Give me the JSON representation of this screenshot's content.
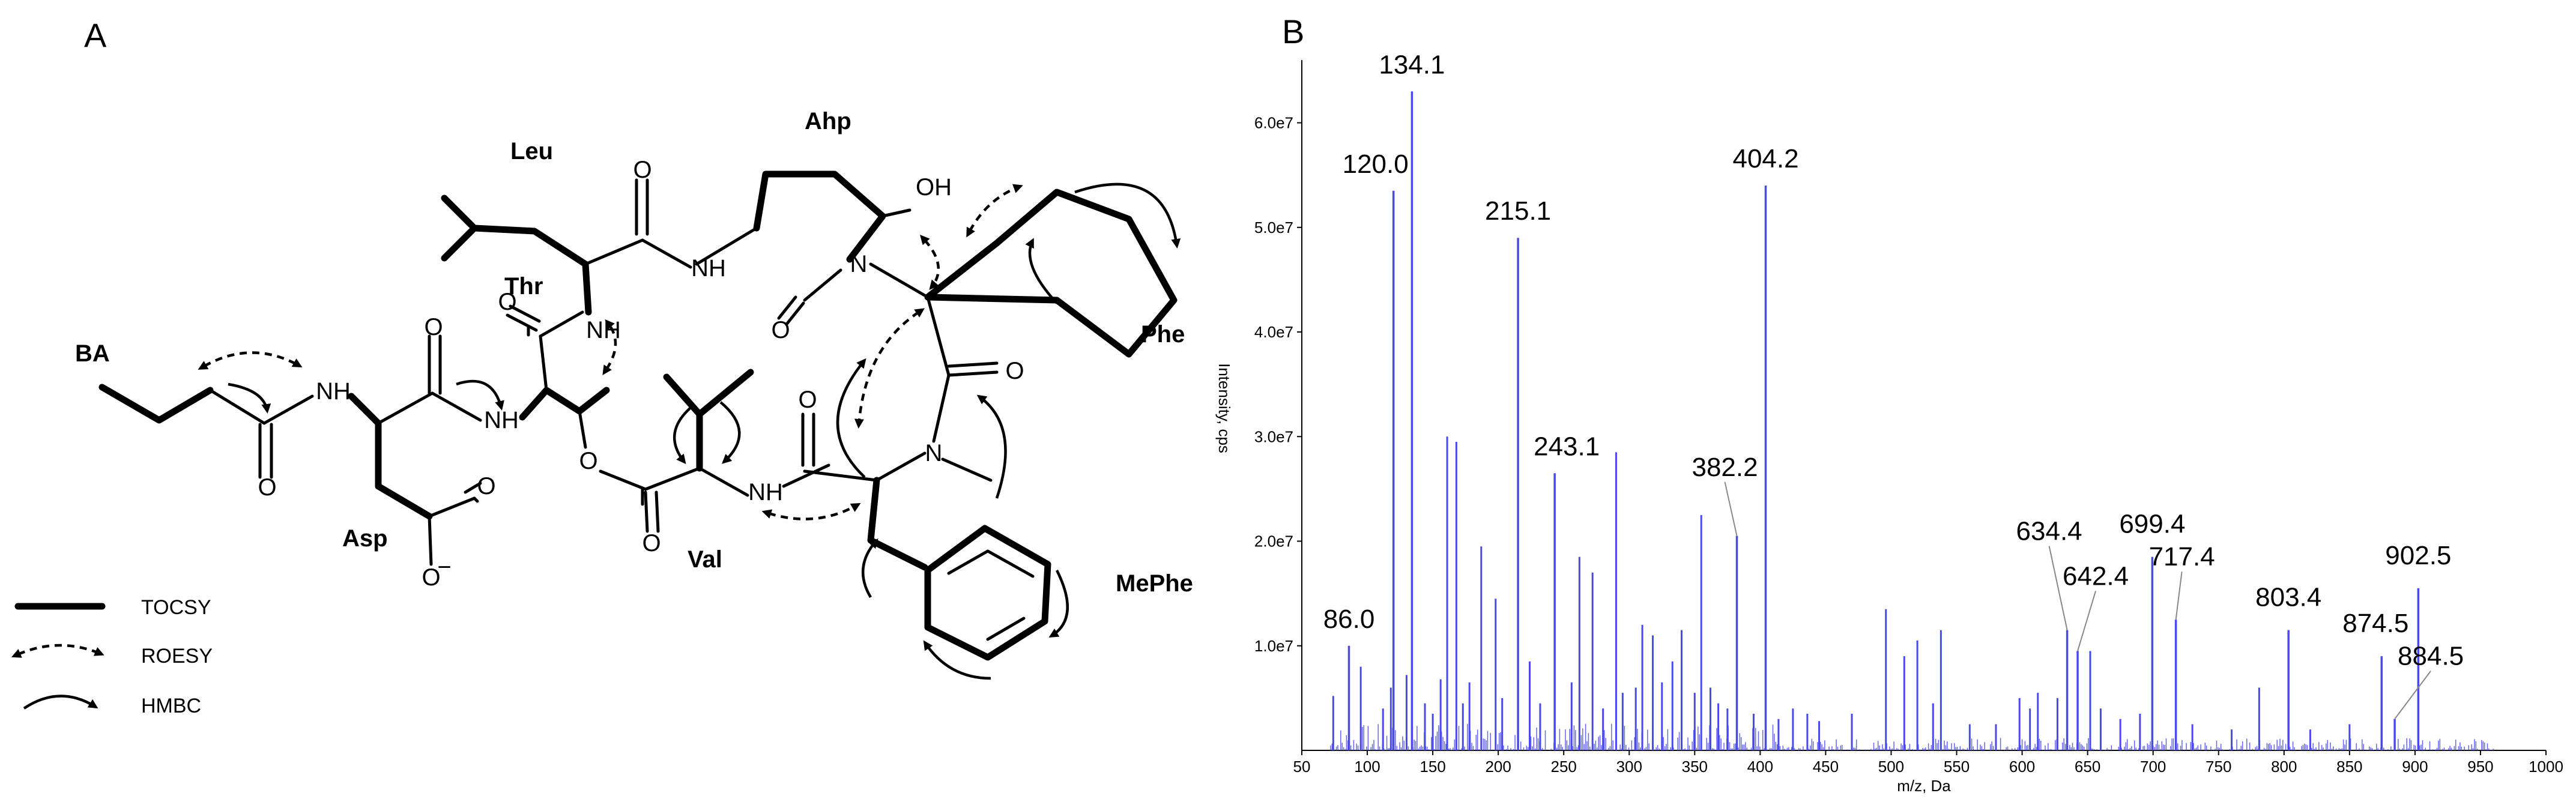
{
  "panel_a": {
    "label": "A",
    "residues": {
      "ba": "BA",
      "asp": "Asp",
      "thr": "Thr",
      "leu": "Leu",
      "ahp": "Ahp",
      "phe": "Phe",
      "val": "Val",
      "mephe": "MePhe"
    },
    "atoms": {
      "nh": "NH",
      "n": "N",
      "o": "O",
      "oh": "OH",
      "o_minus": "O",
      "minus": "−"
    },
    "legend": [
      {
        "label": "TOCSY",
        "style": "solid-bold"
      },
      {
        "label": "ROESY",
        "style": "dashed-arrow"
      },
      {
        "label": "HMBC",
        "style": "curved-arrow"
      }
    ]
  },
  "panel_b": {
    "label": "B",
    "xlabel": "m/z, Da",
    "ylabel": "Intensity, cps",
    "line_color": "#4a4ae8",
    "peak_labels": [
      "134.1",
      "120.0",
      "215.1",
      "404.2",
      "243.1",
      "382.2",
      "86.0",
      "634.4",
      "642.4",
      "699.4",
      "717.4",
      "803.4",
      "874.5",
      "884.5",
      "902.5"
    ],
    "xtick_labels": [
      "50",
      "100",
      "150",
      "200",
      "250",
      "300",
      "350",
      "400",
      "450",
      "500",
      "550",
      "600",
      "650",
      "700",
      "750",
      "800",
      "850",
      "900",
      "950",
      "1000"
    ],
    "ytick_labels": [
      "1.0e7",
      "2.0e7",
      "3.0e7",
      "4.0e7",
      "5.0e7",
      "6.0e7"
    ]
  },
  "chart_data": {
    "type": "bar",
    "title": "",
    "xlabel": "m/z, Da",
    "ylabel": "Intensity, cps",
    "xlim": [
      50,
      1000
    ],
    "ylim": [
      0,
      66000000
    ],
    "grid": false,
    "legend": "none",
    "xticks": [
      50,
      100,
      150,
      200,
      250,
      300,
      350,
      400,
      450,
      500,
      550,
      600,
      650,
      700,
      750,
      800,
      850,
      900,
      950,
      1000
    ],
    "yticks": [
      10000000,
      20000000,
      30000000,
      40000000,
      50000000,
      60000000
    ],
    "labeled_peaks": [
      {
        "x": 86.0,
        "y": 10000000,
        "label": "86.0"
      },
      {
        "x": 120.0,
        "y": 53500000,
        "label": "120.0"
      },
      {
        "x": 134.1,
        "y": 63000000,
        "label": "134.1"
      },
      {
        "x": 215.1,
        "y": 49000000,
        "label": "215.1"
      },
      {
        "x": 243.1,
        "y": 26500000,
        "label": "243.1"
      },
      {
        "x": 382.2,
        "y": 20500000,
        "label": "382.2"
      },
      {
        "x": 404.2,
        "y": 54000000,
        "label": "404.2"
      },
      {
        "x": 634.4,
        "y": 11500000,
        "label": "634.4"
      },
      {
        "x": 642.4,
        "y": 9500000,
        "label": "642.4"
      },
      {
        "x": 699.4,
        "y": 18500000,
        "label": "699.4"
      },
      {
        "x": 717.4,
        "y": 12500000,
        "label": "717.4"
      },
      {
        "x": 803.4,
        "y": 11500000,
        "label": "803.4"
      },
      {
        "x": 874.5,
        "y": 9000000,
        "label": "874.5"
      },
      {
        "x": 884.5,
        "y": 3000000,
        "label": "884.5"
      },
      {
        "x": 902.5,
        "y": 15500000,
        "label": "902.5"
      }
    ],
    "other_peaks": [
      {
        "x": 74,
        "y": 5200000
      },
      {
        "x": 95,
        "y": 8000000
      },
      {
        "x": 112,
        "y": 4000000
      },
      {
        "x": 118,
        "y": 6000000
      },
      {
        "x": 130,
        "y": 7200000
      },
      {
        "x": 144,
        "y": 4500000
      },
      {
        "x": 150,
        "y": 3500000
      },
      {
        "x": 156,
        "y": 6800000
      },
      {
        "x": 161,
        "y": 30000000
      },
      {
        "x": 168,
        "y": 29500000
      },
      {
        "x": 173,
        "y": 4500000
      },
      {
        "x": 178,
        "y": 6500000
      },
      {
        "x": 187,
        "y": 19500000
      },
      {
        "x": 198,
        "y": 14500000
      },
      {
        "x": 203,
        "y": 5000000
      },
      {
        "x": 224,
        "y": 8500000
      },
      {
        "x": 232,
        "y": 4500000
      },
      {
        "x": 256,
        "y": 6500000
      },
      {
        "x": 262,
        "y": 18500000
      },
      {
        "x": 272,
        "y": 17000000
      },
      {
        "x": 280,
        "y": 4000000
      },
      {
        "x": 290,
        "y": 28500000
      },
      {
        "x": 295,
        "y": 5500000
      },
      {
        "x": 305,
        "y": 6000000
      },
      {
        "x": 310,
        "y": 12000000
      },
      {
        "x": 318,
        "y": 11000000
      },
      {
        "x": 325,
        "y": 6500000
      },
      {
        "x": 333,
        "y": 8500000
      },
      {
        "x": 340,
        "y": 11500000
      },
      {
        "x": 350,
        "y": 5500000
      },
      {
        "x": 355,
        "y": 22500000
      },
      {
        "x": 362,
        "y": 6000000
      },
      {
        "x": 368,
        "y": 4500000
      },
      {
        "x": 375,
        "y": 4000000
      },
      {
        "x": 395,
        "y": 3500000
      },
      {
        "x": 414,
        "y": 3000000
      },
      {
        "x": 425,
        "y": 4000000
      },
      {
        "x": 436,
        "y": 3500000
      },
      {
        "x": 445,
        "y": 2800000
      },
      {
        "x": 470,
        "y": 3500000
      },
      {
        "x": 496,
        "y": 13500000
      },
      {
        "x": 510,
        "y": 9000000
      },
      {
        "x": 520,
        "y": 10500000
      },
      {
        "x": 532,
        "y": 4500000
      },
      {
        "x": 538,
        "y": 11500000
      },
      {
        "x": 560,
        "y": 2500000
      },
      {
        "x": 580,
        "y": 2500000
      },
      {
        "x": 598,
        "y": 5000000
      },
      {
        "x": 606,
        "y": 4000000
      },
      {
        "x": 612,
        "y": 5500000
      },
      {
        "x": 627,
        "y": 5000000
      },
      {
        "x": 652,
        "y": 9500000
      },
      {
        "x": 660,
        "y": 4000000
      },
      {
        "x": 675,
        "y": 3000000
      },
      {
        "x": 690,
        "y": 3500000
      },
      {
        "x": 730,
        "y": 2500000
      },
      {
        "x": 760,
        "y": 2000000
      },
      {
        "x": 781,
        "y": 6000000
      },
      {
        "x": 820,
        "y": 2000000
      },
      {
        "x": 850,
        "y": 2500000
      }
    ]
  }
}
